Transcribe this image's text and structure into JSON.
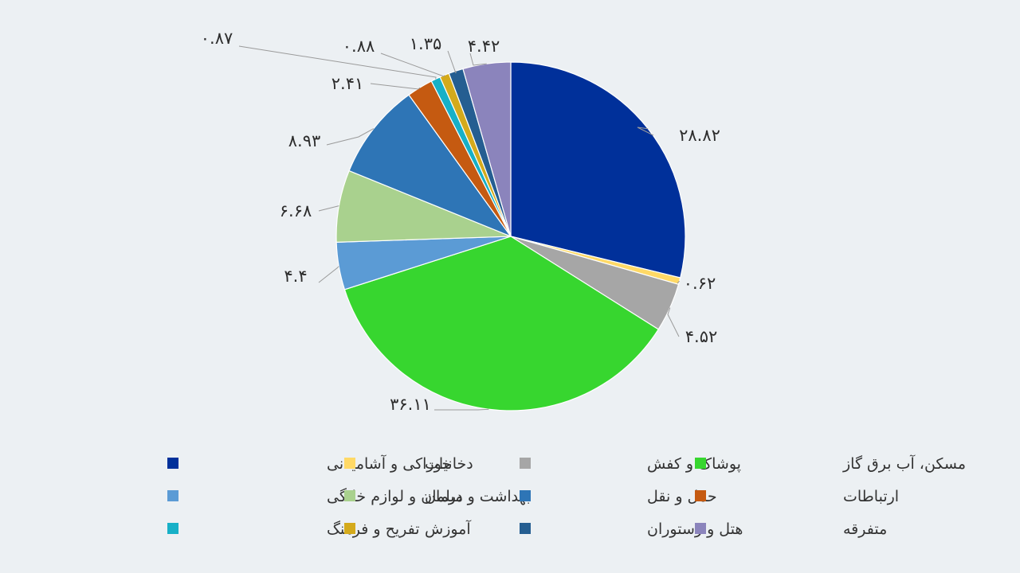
{
  "chart_data": {
    "type": "pie",
    "title": "",
    "slices": [
      {
        "label": "خوراکی و آشامیدنی",
        "value": 28.82,
        "value_label": "۲۸.۸۲",
        "color": "#00309a"
      },
      {
        "label": "دخانیات",
        "value": 0.62,
        "value_label": "۰.۶۲",
        "color": "#ffd966"
      },
      {
        "label": "پوشاک و کفش",
        "value": 4.52,
        "value_label": "۴.۵۲",
        "color": "#a6a6a6"
      },
      {
        "label": "مسکن، آب برق گاز",
        "value": 36.11,
        "value_label": "۳۶.۱۱",
        "color": "#37d62f"
      },
      {
        "label": "مبلمان و لوازم خانگی",
        "value": 4.4,
        "value_label": "۴.۴",
        "color": "#5b9bd5"
      },
      {
        "label": "بهداشت و درمان",
        "value": 6.68,
        "value_label": "۶.۶۸",
        "color": "#a9d18e"
      },
      {
        "label": "حمل و نقل",
        "value": 8.93,
        "value_label": "۸.۹۳",
        "color": "#2e75b6"
      },
      {
        "label": "ارتباطات",
        "value": 2.41,
        "value_label": "۲.۴۱",
        "color": "#c55a11"
      },
      {
        "label": "تفریح و فرهنگ",
        "value": 0.87,
        "value_label": "۰.۸۷",
        "color": "#17b0c7"
      },
      {
        "label": "آموزش",
        "value": 0.88,
        "value_label": "۰.۸۸",
        "color": "#d4aa1c"
      },
      {
        "label": "هتل و رستوران",
        "value": 1.35,
        "value_label": "۱.۳۵",
        "color": "#255e91"
      },
      {
        "label": "متفرقه",
        "value": 4.42,
        "value_label": "۴.۴۲",
        "color": "#8b84bc"
      }
    ],
    "start_angle_deg": 0,
    "direction": "clockwise",
    "legend_placement": "bottom"
  }
}
